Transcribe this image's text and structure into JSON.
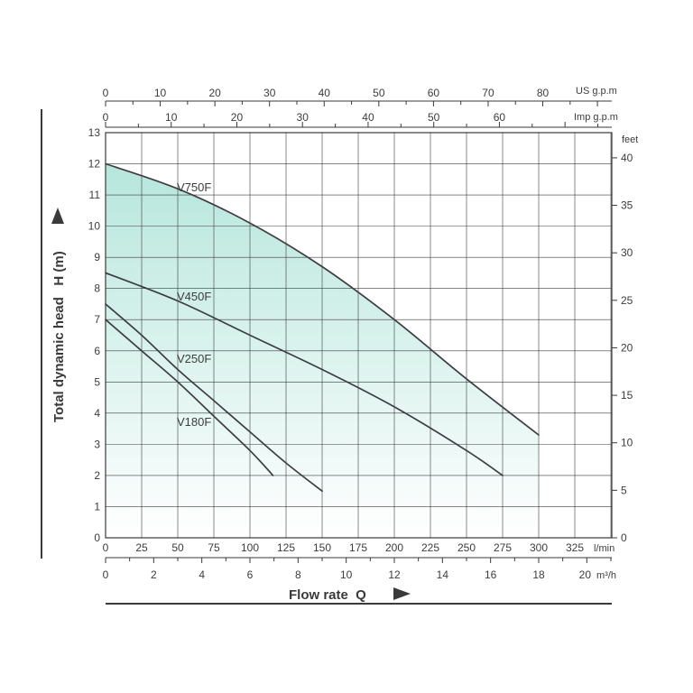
{
  "chart_data": {
    "type": "line",
    "title": "",
    "xlabel": "Flow rate  Q",
    "ylabel": "Total dynamic head   H (m)",
    "x_unit": "l/min",
    "xlim": [
      0,
      350
    ],
    "ylim": [
      0,
      13
    ],
    "grid": true,
    "x_ticks": [
      0,
      25,
      50,
      75,
      100,
      125,
      150,
      175,
      200,
      225,
      250,
      275,
      300,
      325
    ],
    "y_ticks": [
      0,
      1,
      2,
      3,
      4,
      5,
      6,
      7,
      8,
      9,
      10,
      11,
      12,
      13
    ],
    "secondary_axes": {
      "m3h": {
        "unit": "m³/h",
        "ticks": [
          0,
          2,
          4,
          6,
          8,
          10,
          12,
          14,
          16,
          18,
          20
        ]
      },
      "us_gpm": {
        "unit": "US g.p.m",
        "ticks": [
          0,
          10,
          20,
          30,
          40,
          50,
          60,
          70,
          80
        ]
      },
      "imp_gpm": {
        "unit": "Imp g.p.m",
        "ticks": [
          0,
          10,
          20,
          30,
          40,
          50,
          60
        ]
      },
      "feet": {
        "unit": "feet",
        "ticks": [
          0,
          5,
          10,
          15,
          20,
          25,
          30,
          35,
          40
        ]
      }
    },
    "series": [
      {
        "name": "V750F",
        "x": [
          0,
          50,
          100,
          150,
          200,
          250,
          300
        ],
        "y": [
          12.0,
          11.2,
          10.1,
          8.7,
          7.0,
          5.1,
          3.3
        ]
      },
      {
        "name": "V450F",
        "x": [
          0,
          50,
          100,
          150,
          200,
          250,
          275
        ],
        "y": [
          8.5,
          7.6,
          6.5,
          5.4,
          4.2,
          2.8,
          2.0
        ]
      },
      {
        "name": "V250F",
        "x": [
          0,
          25,
          50,
          75,
          100,
          125,
          150
        ],
        "y": [
          7.5,
          6.5,
          5.4,
          4.4,
          3.4,
          2.4,
          1.5
        ]
      },
      {
        "name": "V180F",
        "x": [
          0,
          25,
          50,
          75,
          100,
          116
        ],
        "y": [
          7.0,
          6.0,
          5.0,
          3.9,
          2.8,
          2.0
        ]
      }
    ],
    "colors": {
      "curve": "#3d3d45",
      "fill_top": "#b6e6dc",
      "fill_bottom": "#ffffff",
      "grid": "#3c3c3c"
    }
  }
}
